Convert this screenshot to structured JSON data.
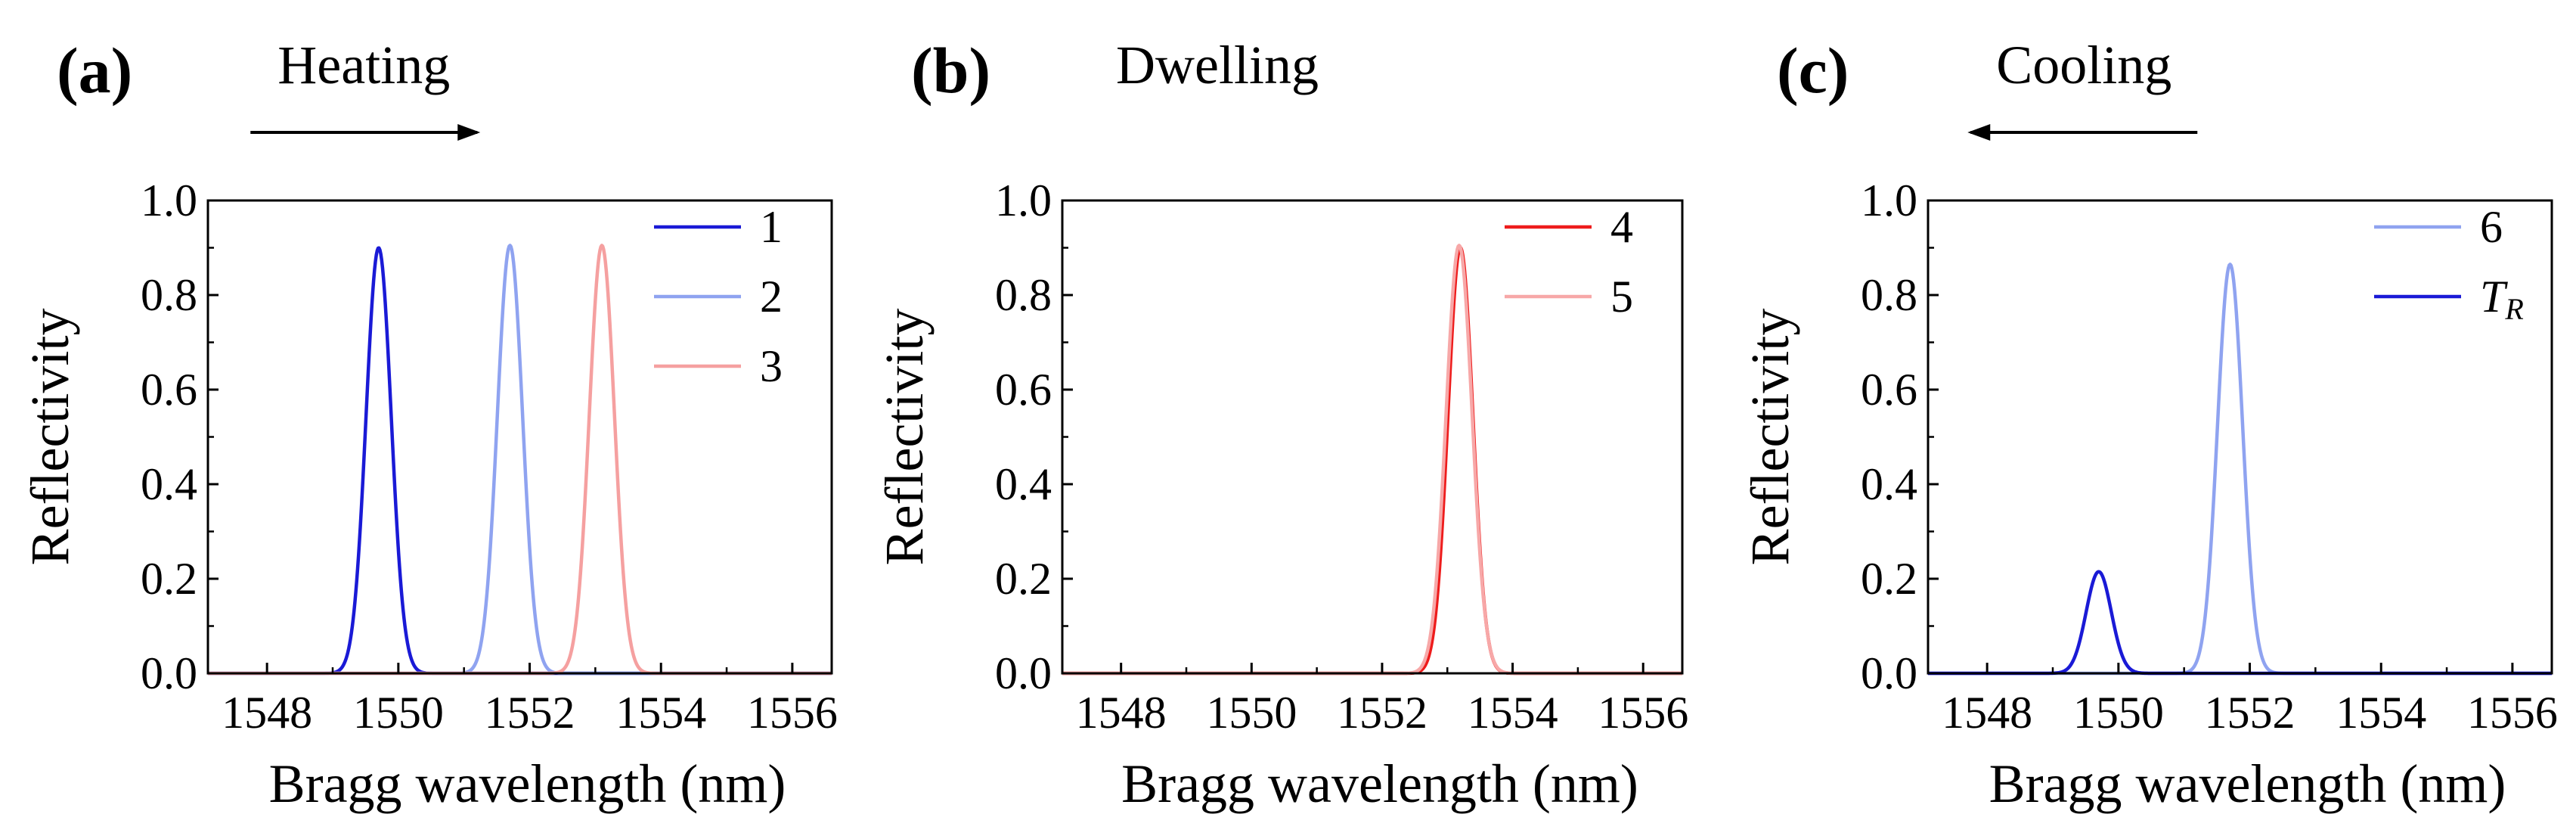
{
  "chart_data": [
    {
      "type": "line",
      "panel_label": "(a)",
      "heading": "Heating",
      "arrow": "right",
      "xlabel": "Bragg wavelength (nm)",
      "ylabel": "Reflectivity",
      "xlim": [
        1547.1,
        1556.6
      ],
      "ylim": [
        0.0,
        1.0
      ],
      "xticks": [
        "1548",
        "1550",
        "1552",
        "1554",
        "1556"
      ],
      "xtick_values": [
        1548,
        1550,
        1552,
        1554,
        1556
      ],
      "yticks": [
        "0.0",
        "0.2",
        "0.4",
        "0.6",
        "0.8",
        "1.0"
      ],
      "ytick_values": [
        0.0,
        0.2,
        0.4,
        0.6,
        0.8,
        1.0
      ],
      "series": [
        {
          "name": "1",
          "peak_wavelength": 1549.7,
          "peak_reflectivity": 0.9,
          "fwhm": 0.45,
          "color": "#1a1ad6"
        },
        {
          "name": "2",
          "peak_wavelength": 1551.7,
          "peak_reflectivity": 0.905,
          "fwhm": 0.45,
          "color": "#8fa3f0"
        },
        {
          "name": "3",
          "peak_wavelength": 1553.1,
          "peak_reflectivity": 0.905,
          "fwhm": 0.45,
          "color": "#f5a0a0"
        }
      ]
    },
    {
      "type": "line",
      "panel_label": "(b)",
      "heading": "Dwelling",
      "arrow": "none",
      "xlabel": "Bragg wavelength (nm)",
      "ylabel": "Reflectivity",
      "xlim": [
        1547.1,
        1556.6
      ],
      "ylim": [
        0.0,
        1.0
      ],
      "xticks": [
        "1548",
        "1550",
        "1552",
        "1554",
        "1556"
      ],
      "xtick_values": [
        1548,
        1550,
        1552,
        1554,
        1556
      ],
      "yticks": [
        "0.0",
        "0.2",
        "0.4",
        "0.6",
        "0.8",
        "1.0"
      ],
      "ytick_values": [
        0.0,
        0.2,
        0.4,
        0.6,
        0.8,
        1.0
      ],
      "series": [
        {
          "name": "4",
          "peak_wavelength": 1553.2,
          "peak_reflectivity": 0.9,
          "fwhm": 0.45,
          "color": "#ee1c1c"
        },
        {
          "name": "5",
          "peak_wavelength": 1553.18,
          "peak_reflectivity": 0.905,
          "fwhm": 0.47,
          "color": "#f7a8a8"
        }
      ]
    },
    {
      "type": "line",
      "panel_label": "(c)",
      "heading": "Cooling",
      "arrow": "left",
      "xlabel": "Bragg wavelength (nm)",
      "ylabel": "Reflectivity",
      "xlim": [
        1547.1,
        1556.6
      ],
      "ylim": [
        0.0,
        1.0
      ],
      "xticks": [
        "1548",
        "1550",
        "1552",
        "1554",
        "1556"
      ],
      "xtick_values": [
        1548,
        1550,
        1552,
        1554,
        1556
      ],
      "yticks": [
        "0.0",
        "0.2",
        "0.4",
        "0.6",
        "0.8",
        "1.0"
      ],
      "ytick_values": [
        0.0,
        0.2,
        0.4,
        0.6,
        0.8,
        1.0
      ],
      "series": [
        {
          "name": "6",
          "peak_wavelength": 1551.7,
          "peak_reflectivity": 0.865,
          "fwhm": 0.45,
          "color": "#8fa3f0"
        },
        {
          "name": "T",
          "subscript": "R",
          "peak_wavelength": 1549.7,
          "peak_reflectivity": 0.215,
          "fwhm": 0.45,
          "color": "#1a1ad6"
        }
      ]
    }
  ]
}
